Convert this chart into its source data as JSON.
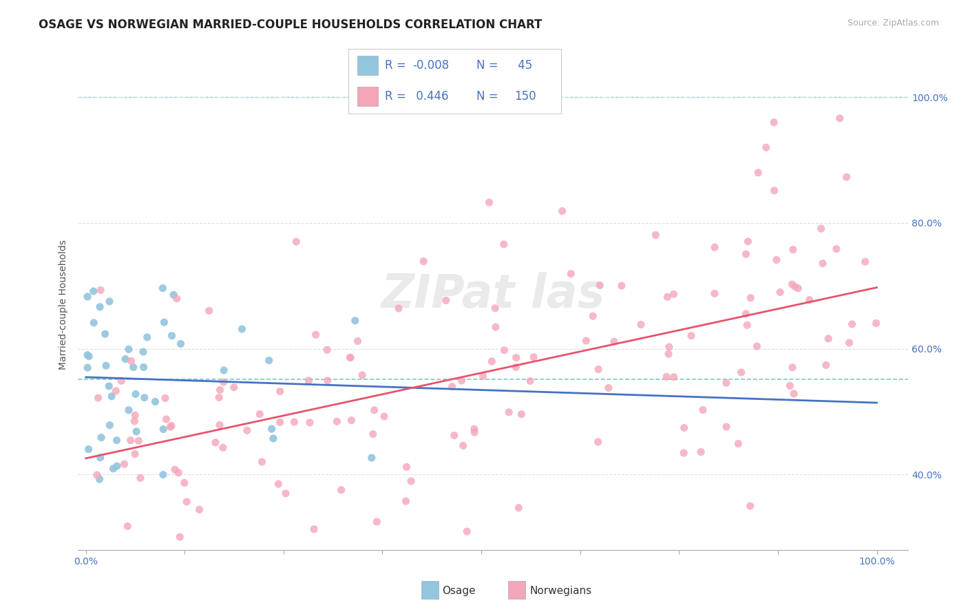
{
  "title": "OSAGE VS NORWEGIAN MARRIED-COUPLE HOUSEHOLDS CORRELATION CHART",
  "source": "Source: ZipAtlas.com",
  "ylabel": "Married-couple Households",
  "legend_label1": "Osage",
  "legend_label2": "Norwegians",
  "R1": -0.008,
  "N1": 45,
  "R2": 0.446,
  "N2": 150,
  "color1": "#92C5DE",
  "color2": "#F4A7B9",
  "line_color1": "#4472C4",
  "line_color2": "#E8536A",
  "dashed_line_color": "#7EC8C8",
  "background_color": "#FFFFFF",
  "title_color": "#222222",
  "title_fontsize": 12,
  "axis_label_fontsize": 10,
  "tick_fontsize": 10,
  "legend_fontsize": 13,
  "legend_text_color": "#4472C4",
  "watermark_text": "ZIPat las",
  "ytick_color": "#4472C4",
  "xtick_color": "#4472C4"
}
